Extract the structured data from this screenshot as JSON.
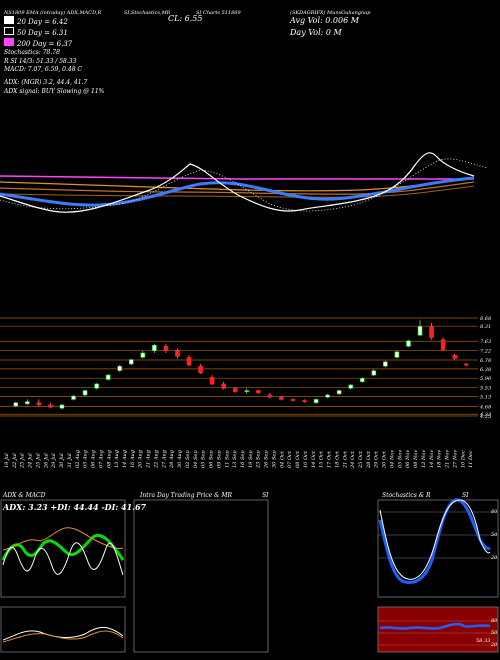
{
  "header": {
    "line1": "(SKDAGRIFX) MunsGuhangnap",
    "top_left": "NS1809 EMA (intraday) ADX,MACD,R",
    "top_mid": "SI,Stochastics,MR",
    "top_mid2": "SI Charts 511869",
    "cl_value": "CL: 6.55",
    "avg_vol": "Avg Vol: 0.006  M",
    "day_vol": "Day Vol: 0  M",
    "ema20": "20  Day = 6.42",
    "ema50": "50  Day = 6.31",
    "ema200": "200  Day = 6.37",
    "stochastics": "Stochastics: 78.78",
    "rsi": "R                     SI 14/3: 51.33 / 58.33",
    "macd": "MACD: 7.07, 6.59, 0.48  C",
    "adx": "ADX:                         (MGR) 3.2, 44.4, 41.7",
    "adx_signal": "ADX  signal:                    BUY Slowing @ 11%"
  },
  "colors": {
    "ema20": "#ffffff",
    "ema50": "#3a7bff",
    "ema200": "#ff44ff",
    "orange": "#e09030",
    "candle_up": "#00e000",
    "candle_down": "#ff2020",
    "panel_red": "#8a0000",
    "stoch_blue": "#2060ff"
  },
  "price_axis": [
    "8.68",
    "8.31",
    "7.63",
    "7.22",
    "6.78",
    "6.38",
    "5.96",
    "5.53",
    "5.13",
    "4.68",
    "4.33",
    "4.25"
  ],
  "date_labels": [
    "19 Jul",
    "22 Jul",
    "23 Jul",
    "24 Jul",
    "25 Jul",
    "26 Jul",
    "29 Jul",
    "30 Jul",
    "31 Jul",
    "02 Aug",
    "05 Aug",
    "06 Aug",
    "07 Aug",
    "08 Aug",
    "13 Aug",
    "14 Aug",
    "16 Aug",
    "20 Aug",
    "21 Aug",
    "22 Aug",
    "27 Aug",
    "28 Aug",
    "30 Aug",
    "02 Sep",
    "04 Sep",
    "05 Sep",
    "06 Sep",
    "09 Sep",
    "11 Sep",
    "13 Sep",
    "16 Sep",
    "19 Sep",
    "23 Sep",
    "26 Sep",
    "30 Sep",
    "04 Oct",
    "07 Oct",
    "08 Oct",
    "10 Oct",
    "14 Oct",
    "15 Oct",
    "17 Oct",
    "18 Oct",
    "21 Oct",
    "24 Oct",
    "25 Oct",
    "28 Oct",
    "29 Oct",
    "30 Oct",
    "04 Nov",
    "05 Nov",
    "06 Nov",
    "08 Nov",
    "12 Nov",
    "14 Nov",
    "18 Nov",
    "21 Nov",
    "27 Nov",
    "10 Dec",
    "11 Dec"
  ],
  "panels": {
    "adx_macd_title": "ADX  & MACD",
    "adx_readout": "ADX: 3.23  +DI: 44.44  -DI: 41.67",
    "intraday_title": "Intra  Day Trading Price  & MR",
    "intraday_si": "SI",
    "stoch_title": "Stochastics & R",
    "stoch_si": "SI",
    "stoch_ticks": [
      "80",
      "50",
      "20"
    ],
    "rsi_ticks": [
      "80",
      "50",
      "20"
    ],
    "rsi_value": "58.33"
  },
  "chart_data": {
    "type": "candlestick",
    "title": "",
    "ylim": [
      4.25,
      8.68
    ],
    "candles": [
      {
        "o": 4.7,
        "h": 4.9,
        "l": 4.65,
        "c": 4.85
      },
      {
        "o": 4.8,
        "h": 5.0,
        "l": 4.75,
        "c": 4.9
      },
      {
        "o": 4.85,
        "h": 5.0,
        "l": 4.7,
        "c": 4.75
      },
      {
        "o": 4.75,
        "h": 4.85,
        "l": 4.6,
        "c": 4.65
      },
      {
        "o": 4.6,
        "h": 4.8,
        "l": 4.55,
        "c": 4.75
      },
      {
        "o": 5.0,
        "h": 5.2,
        "l": 4.95,
        "c": 5.15
      },
      {
        "o": 5.2,
        "h": 5.45,
        "l": 5.15,
        "c": 5.4
      },
      {
        "o": 5.5,
        "h": 5.75,
        "l": 5.45,
        "c": 5.7
      },
      {
        "o": 5.9,
        "h": 6.15,
        "l": 5.85,
        "c": 6.1
      },
      {
        "o": 6.3,
        "h": 6.55,
        "l": 6.25,
        "c": 6.5
      },
      {
        "o": 6.6,
        "h": 6.85,
        "l": 6.55,
        "c": 6.8
      },
      {
        "o": 6.9,
        "h": 7.2,
        "l": 6.85,
        "c": 7.1
      },
      {
        "o": 7.2,
        "h": 7.5,
        "l": 7.1,
        "c": 7.45
      },
      {
        "o": 7.4,
        "h": 7.5,
        "l": 7.1,
        "c": 7.2
      },
      {
        "o": 7.2,
        "h": 7.3,
        "l": 6.85,
        "c": 6.95
      },
      {
        "o": 6.9,
        "h": 7.0,
        "l": 6.5,
        "c": 6.55
      },
      {
        "o": 6.5,
        "h": 6.6,
        "l": 6.15,
        "c": 6.2
      },
      {
        "o": 6.0,
        "h": 6.1,
        "l": 5.65,
        "c": 5.7
      },
      {
        "o": 5.7,
        "h": 5.8,
        "l": 5.45,
        "c": 5.5
      },
      {
        "o": 5.5,
        "h": 5.55,
        "l": 5.3,
        "c": 5.35
      },
      {
        "o": 5.35,
        "h": 5.5,
        "l": 5.25,
        "c": 5.4
      },
      {
        "o": 5.4,
        "h": 5.45,
        "l": 5.25,
        "c": 5.3
      },
      {
        "o": 5.2,
        "h": 5.3,
        "l": 5.05,
        "c": 5.1
      },
      {
        "o": 5.1,
        "h": 5.15,
        "l": 4.95,
        "c": 5.0
      },
      {
        "o": 5.0,
        "h": 5.05,
        "l": 4.9,
        "c": 4.95
      },
      {
        "o": 4.95,
        "h": 5.0,
        "l": 4.85,
        "c": 4.9
      },
      {
        "o": 4.85,
        "h": 5.05,
        "l": 4.8,
        "c": 5.0
      },
      {
        "o": 5.1,
        "h": 5.25,
        "l": 5.05,
        "c": 5.2
      },
      {
        "o": 5.25,
        "h": 5.45,
        "l": 5.2,
        "c": 5.4
      },
      {
        "o": 5.5,
        "h": 5.7,
        "l": 5.45,
        "c": 5.65
      },
      {
        "o": 5.8,
        "h": 6.0,
        "l": 5.75,
        "c": 5.95
      },
      {
        "o": 6.1,
        "h": 6.35,
        "l": 6.05,
        "c": 6.3
      },
      {
        "o": 6.5,
        "h": 6.75,
        "l": 6.45,
        "c": 6.7
      },
      {
        "o": 6.9,
        "h": 7.2,
        "l": 6.85,
        "c": 7.15
      },
      {
        "o": 7.4,
        "h": 7.7,
        "l": 7.35,
        "c": 7.65
      },
      {
        "o": 7.9,
        "h": 8.6,
        "l": 7.85,
        "c": 8.3
      },
      {
        "o": 8.3,
        "h": 8.45,
        "l": 7.7,
        "c": 7.8
      },
      {
        "o": 7.7,
        "h": 7.8,
        "l": 7.2,
        "c": 7.25
      },
      {
        "o": 7.0,
        "h": 7.05,
        "l": 6.8,
        "c": 6.85
      },
      {
        "o": 6.6,
        "h": 6.65,
        "l": 6.5,
        "c": 6.55
      }
    ]
  }
}
